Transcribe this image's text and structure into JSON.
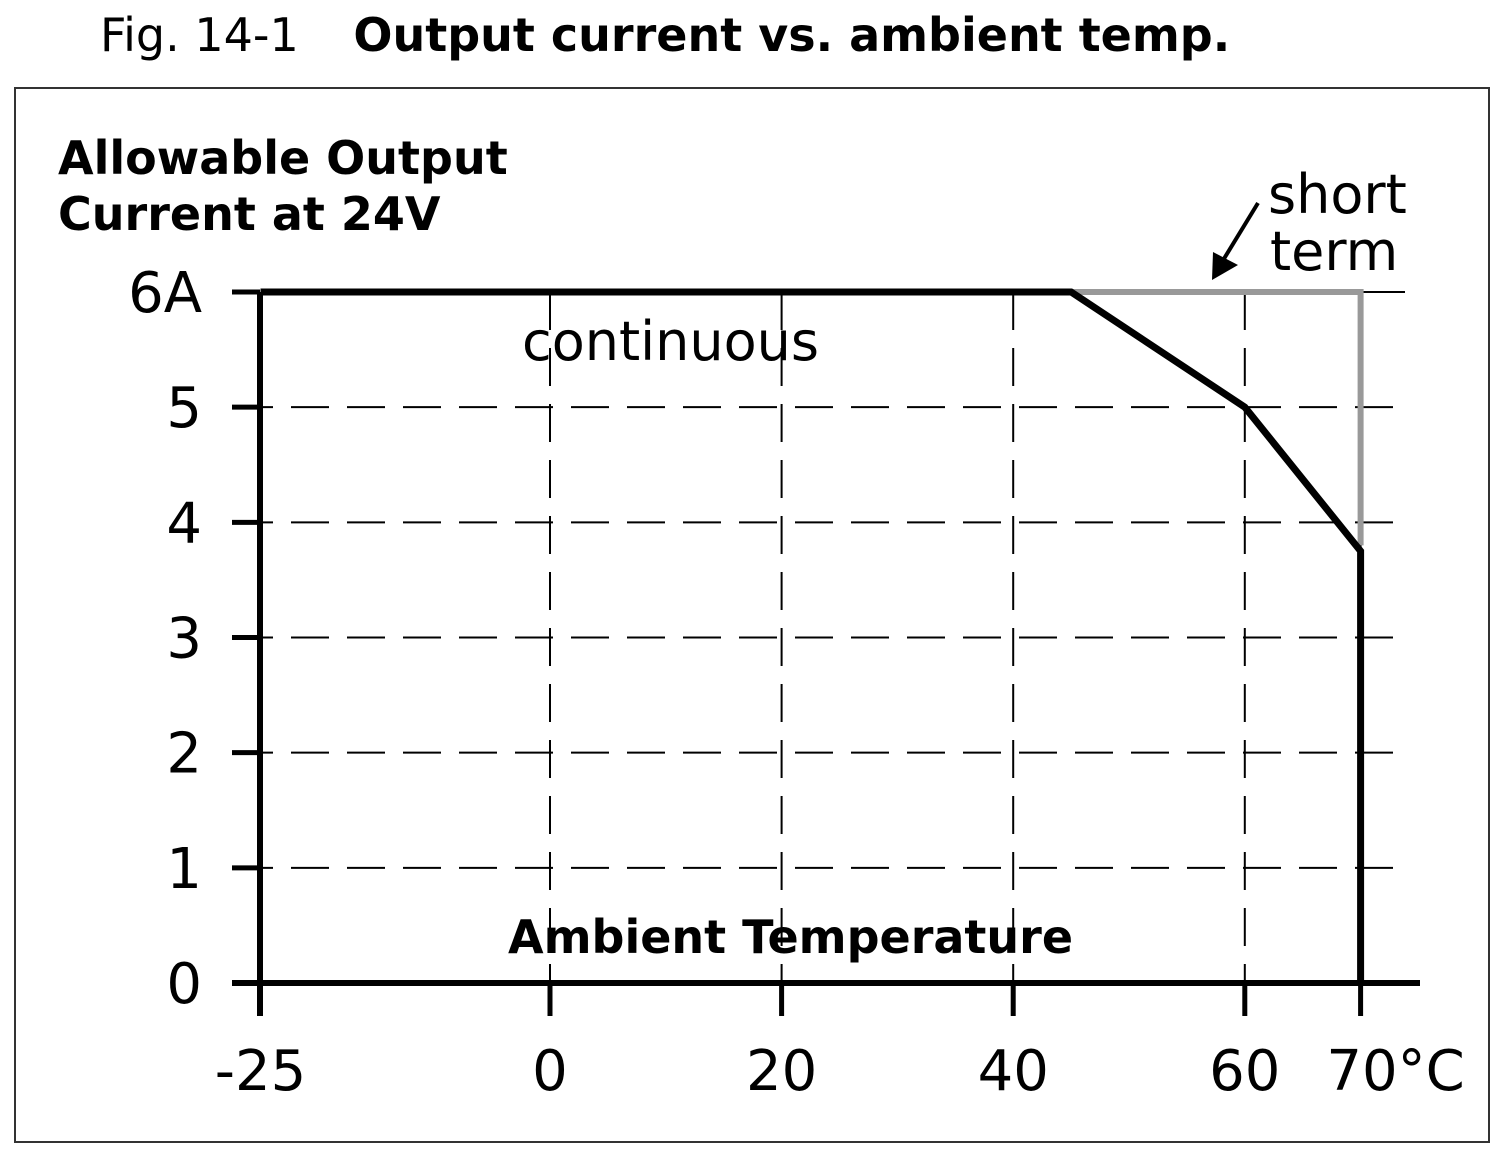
{
  "figure": {
    "number": "Fig. 14-1",
    "title": "Output current vs. ambient temp."
  },
  "chart_data": {
    "type": "line",
    "title": "Output current vs. ambient temp.",
    "ylabel": "Allowable Output Current at 24V",
    "ylabel_lines": [
      "Allowable Output",
      "Current at 24V"
    ],
    "xlabel": "Ambient Temperature",
    "xlim": [
      -25,
      75
    ],
    "ylim": [
      0,
      6
    ],
    "x_ticks": [
      -25,
      0,
      20,
      40,
      60,
      70
    ],
    "x_tick_labels": [
      "-25",
      "0",
      "20",
      "40",
      "60",
      "70°C"
    ],
    "y_ticks": [
      0,
      1,
      2,
      3,
      4,
      5,
      6
    ],
    "y_tick_labels": [
      "0",
      "1",
      "2",
      "3",
      "4",
      "5",
      "6A"
    ],
    "grid": true,
    "series": [
      {
        "name": "continuous",
        "color": "#000000",
        "x": [
          -25,
          45,
          60,
          70,
          70
        ],
        "y": [
          6,
          6,
          5,
          3.75,
          0
        ]
      },
      {
        "name": "short term",
        "color": "#999999",
        "x": [
          45,
          70,
          70
        ],
        "y": [
          6,
          6,
          3.8
        ]
      }
    ],
    "annotations": {
      "continuous": "continuous",
      "short_term_lines": [
        "short",
        "term"
      ]
    }
  }
}
